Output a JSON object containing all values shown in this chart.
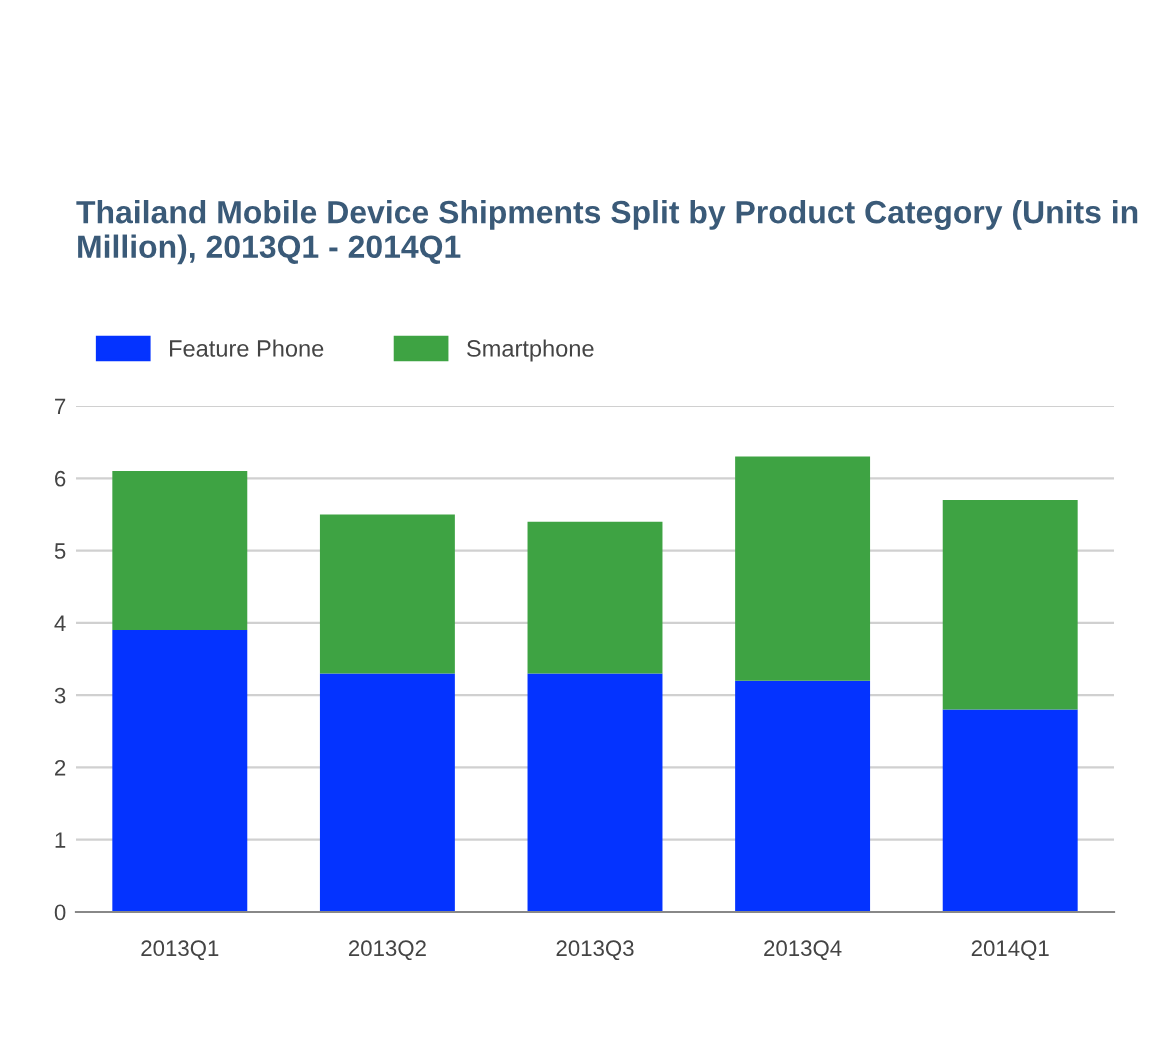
{
  "chart_data": {
    "type": "bar",
    "stacked": true,
    "title": "Thailand Mobile Device Shipments Split by Product Category (Units in Million), 2013Q1 - 2014Q1",
    "categories": [
      "2013Q1",
      "2013Q2",
      "2013Q3",
      "2013Q4",
      "2014Q1"
    ],
    "series": [
      {
        "name": "Feature Phone",
        "color": "#0433ff",
        "values": [
          3.9,
          3.3,
          3.3,
          3.2,
          2.8
        ]
      },
      {
        "name": "Smartphone",
        "color": "#3ea343",
        "values": [
          2.2,
          2.2,
          2.1,
          3.1,
          2.9
        ]
      }
    ],
    "ylim": [
      0,
      7
    ],
    "yticks": [
      0,
      1,
      2,
      3,
      4,
      5,
      6,
      7
    ],
    "grid": "y",
    "legend": "top left"
  }
}
